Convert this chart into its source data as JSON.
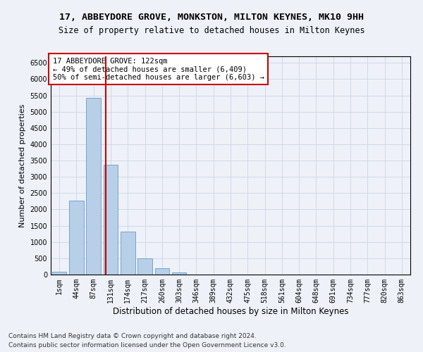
{
  "title1": "17, ABBEYDORE GROVE, MONKSTON, MILTON KEYNES, MK10 9HH",
  "title2": "Size of property relative to detached houses in Milton Keynes",
  "xlabel": "Distribution of detached houses by size in Milton Keynes",
  "ylabel": "Number of detached properties",
  "bar_color": "#b8cfe8",
  "bar_edge_color": "#6699cc",
  "grid_color": "#d0d8e8",
  "bg_color": "#eef2f8",
  "categories": [
    "1sqm",
    "44sqm",
    "87sqm",
    "131sqm",
    "174sqm",
    "217sqm",
    "260sqm",
    "303sqm",
    "346sqm",
    "389sqm",
    "432sqm",
    "475sqm",
    "518sqm",
    "561sqm",
    "604sqm",
    "648sqm",
    "691sqm",
    "734sqm",
    "777sqm",
    "820sqm",
    "863sqm"
  ],
  "values": [
    80,
    2280,
    5430,
    3380,
    1310,
    490,
    185,
    75,
    0,
    0,
    0,
    0,
    0,
    0,
    0,
    0,
    0,
    0,
    0,
    0,
    0
  ],
  "ylim": [
    0,
    6700
  ],
  "yticks": [
    0,
    500,
    1000,
    1500,
    2000,
    2500,
    3000,
    3500,
    4000,
    4500,
    5000,
    5500,
    6000,
    6500
  ],
  "vline_x": 2.72,
  "vline_color": "#cc0000",
  "annotation_text": "17 ABBEYDORE GROVE: 122sqm\n← 49% of detached houses are smaller (6,409)\n50% of semi-detached houses are larger (6,603) →",
  "annotation_box_color": "#ffffff",
  "annotation_border_color": "#cc0000",
  "footer1": "Contains HM Land Registry data © Crown copyright and database right 2024.",
  "footer2": "Contains public sector information licensed under the Open Government Licence v3.0.",
  "title1_fontsize": 9.5,
  "title2_fontsize": 8.5,
  "xlabel_fontsize": 8.5,
  "ylabel_fontsize": 8,
  "tick_fontsize": 7,
  "annotation_fontsize": 7.5,
  "footer_fontsize": 6.5
}
